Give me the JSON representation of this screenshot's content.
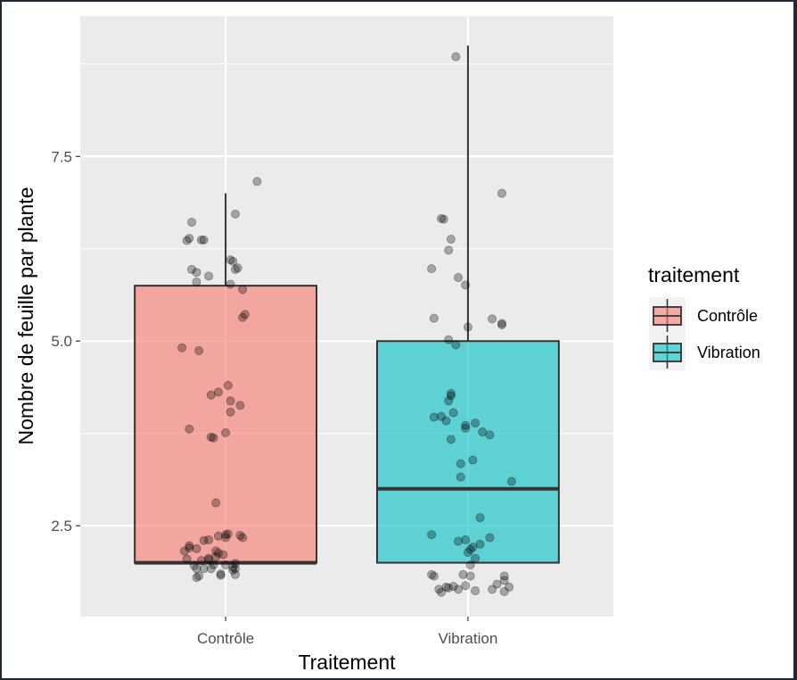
{
  "chart_data": {
    "type": "box",
    "xlabel": "Traitement",
    "ylabel": "Nombre de feuille par plante",
    "categories": [
      "Contrôle",
      "Vibration"
    ],
    "ylim": [
      1.27,
      9.4
    ],
    "yticks": [
      2.5,
      5.0,
      7.5
    ],
    "ytick_labels": [
      "2.5",
      "5.0",
      "7.5"
    ],
    "grid": true,
    "legend": {
      "title": "traitement",
      "position": "right",
      "entries": [
        "Contrôle",
        "Vibration"
      ]
    },
    "colors": {
      "Contrôle": "#f8766d",
      "Vibration": "#00bfc4"
    },
    "boxes": [
      {
        "category": "Contrôle",
        "whisker_low": 2,
        "q1": 2,
        "median": 2,
        "q3": 5.75,
        "whisker_high": 7
      },
      {
        "category": "Vibration",
        "whisker_low": 2,
        "q1": 2,
        "median": 3,
        "q3": 5,
        "whisker_high": 9
      }
    ],
    "points": {
      "Contrôle": [
        [
          1.13,
          7.16
        ],
        [
          1.04,
          6.72
        ],
        [
          0.86,
          6.61
        ],
        [
          0.85,
          6.39
        ],
        [
          0.9,
          6.37
        ],
        [
          0.91,
          6.37
        ],
        [
          0.84,
          6.36
        ],
        [
          1.02,
          6.1
        ],
        [
          1.03,
          6.08
        ],
        [
          1.05,
          5.99
        ],
        [
          1.04,
          5.97
        ],
        [
          0.86,
          5.97
        ],
        [
          0.88,
          5.93
        ],
        [
          0.93,
          5.88
        ],
        [
          0.88,
          5.8
        ],
        [
          1.02,
          5.77
        ],
        [
          1.07,
          5.7
        ],
        [
          1.08,
          5.36
        ],
        [
          1.07,
          5.32
        ],
        [
          0.82,
          4.91
        ],
        [
          0.89,
          4.87
        ],
        [
          1.01,
          4.4
        ],
        [
          0.97,
          4.31
        ],
        [
          0.94,
          4.27
        ],
        [
          1.02,
          4.19
        ],
        [
          1.06,
          4.13
        ],
        [
          1.02,
          4.04
        ],
        [
          0.85,
          3.81
        ],
        [
          1.0,
          3.76
        ],
        [
          0.94,
          3.7
        ],
        [
          0.95,
          3.69
        ],
        [
          0.96,
          2.81
        ],
        [
          1.01,
          2.39
        ],
        [
          1.0,
          2.38
        ],
        [
          1.06,
          2.37
        ],
        [
          0.97,
          2.36
        ],
        [
          1.07,
          2.34
        ],
        [
          1.0,
          2.34
        ],
        [
          0.93,
          2.31
        ],
        [
          0.91,
          2.3
        ],
        [
          0.85,
          2.23
        ],
        [
          0.85,
          2.2
        ],
        [
          0.88,
          2.19
        ],
        [
          0.83,
          2.16
        ],
        [
          0.96,
          2.16
        ],
        [
          0.97,
          2.13
        ],
        [
          0.99,
          2.11
        ],
        [
          0.96,
          2.08
        ],
        [
          0.93,
          2.06
        ],
        [
          0.84,
          2.05
        ],
        [
          0.93,
          2.04
        ],
        [
          0.9,
          2.03
        ],
        [
          1.04,
          1.99
        ],
        [
          0.95,
          1.97
        ],
        [
          1.0,
          1.97
        ],
        [
          0.87,
          1.96
        ],
        [
          1.03,
          1.94
        ],
        [
          1.04,
          1.92
        ],
        [
          0.91,
          1.92
        ],
        [
          0.94,
          1.92
        ],
        [
          0.88,
          1.92
        ],
        [
          1.03,
          1.9
        ],
        [
          0.98,
          1.85
        ],
        [
          1.04,
          1.84
        ],
        [
          0.89,
          1.82
        ],
        [
          0.98,
          1.83
        ],
        [
          0.88,
          1.8
        ]
      ],
      "Vibration": [
        [
          1.95,
          8.85
        ],
        [
          2.14,
          7.0
        ],
        [
          1.89,
          6.66
        ],
        [
          1.9,
          6.65
        ],
        [
          1.93,
          6.38
        ],
        [
          1.92,
          6.23
        ],
        [
          1.85,
          5.98
        ],
        [
          1.96,
          5.86
        ],
        [
          1.99,
          5.76
        ],
        [
          2.1,
          5.3
        ],
        [
          2.14,
          5.24
        ],
        [
          2.14,
          5.22
        ],
        [
          2.0,
          5.19
        ],
        [
          1.86,
          5.31
        ],
        [
          1.92,
          5.02
        ],
        [
          1.95,
          4.95
        ],
        [
          1.93,
          4.29
        ],
        [
          1.93,
          4.26
        ],
        [
          1.92,
          4.19
        ],
        [
          1.94,
          4.03
        ],
        [
          1.89,
          3.98
        ],
        [
          1.91,
          3.92
        ],
        [
          1.86,
          3.97
        ],
        [
          1.99,
          3.86
        ],
        [
          2.03,
          3.89
        ],
        [
          1.99,
          3.82
        ],
        [
          2.06,
          3.77
        ],
        [
          2.09,
          3.73
        ],
        [
          1.93,
          3.67
        ],
        [
          1.97,
          3.34
        ],
        [
          2.02,
          3.39
        ],
        [
          1.97,
          3.16
        ],
        [
          2.18,
          3.1
        ],
        [
          2.05,
          2.61
        ],
        [
          1.85,
          2.38
        ],
        [
          1.99,
          2.31
        ],
        [
          1.96,
          2.29
        ],
        [
          2.09,
          2.34
        ],
        [
          2.05,
          2.25
        ],
        [
          2.02,
          2.21
        ],
        [
          2.01,
          2.18
        ],
        [
          2.0,
          2.14
        ],
        [
          2.03,
          2.06
        ],
        [
          2.01,
          1.97
        ],
        [
          2.15,
          1.82
        ],
        [
          1.85,
          1.84
        ],
        [
          1.86,
          1.82
        ],
        [
          1.98,
          1.84
        ],
        [
          2.01,
          1.82
        ],
        [
          2.15,
          1.76
        ],
        [
          2.12,
          1.71
        ],
        [
          2.17,
          1.67
        ],
        [
          1.94,
          1.68
        ],
        [
          1.92,
          1.66
        ],
        [
          1.91,
          1.67
        ],
        [
          1.99,
          1.69
        ],
        [
          1.88,
          1.64
        ],
        [
          2.03,
          1.62
        ],
        [
          2.1,
          1.64
        ],
        [
          2.15,
          1.61
        ],
        [
          1.96,
          1.64
        ],
        [
          1.89,
          1.6
        ]
      ]
    }
  }
}
